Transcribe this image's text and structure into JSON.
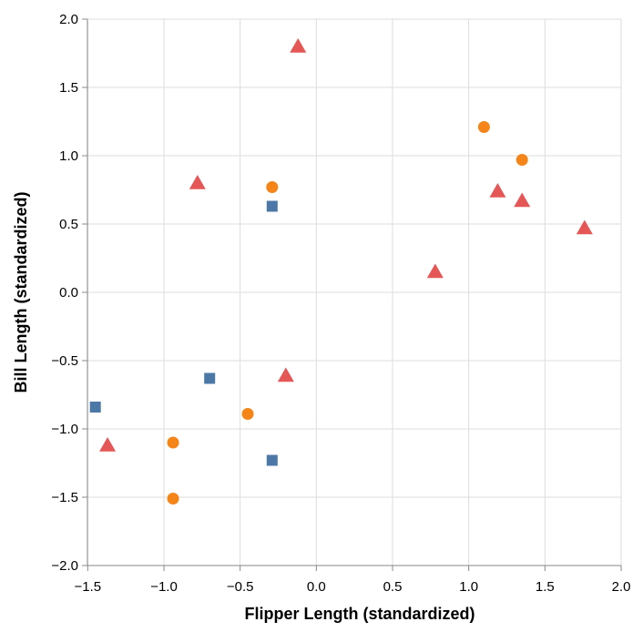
{
  "chart_data": {
    "type": "scatter",
    "xlabel": "Flipper Length (standardized)",
    "ylabel": "Bill Length (standardized)",
    "xlim": [
      -1.5,
      2.0
    ],
    "ylim": [
      -2.0,
      2.0
    ],
    "x_ticks": [
      "−1.5",
      "−1.0",
      "−0.5",
      "0.0",
      "0.5",
      "1.0",
      "1.5",
      "2.0"
    ],
    "y_ticks": [
      "2.0",
      "1.5",
      "1.0",
      "0.5",
      "0.0",
      "−0.5",
      "−1.0",
      "−1.5",
      "−2.0"
    ],
    "grid": true,
    "series": [
      {
        "marker": "triangle",
        "color": "#e45756",
        "points": [
          {
            "x": -0.12,
            "y": 1.8
          },
          {
            "x": -0.78,
            "y": 0.8
          },
          {
            "x": 1.19,
            "y": 0.74
          },
          {
            "x": 1.35,
            "y": 0.67
          },
          {
            "x": 1.76,
            "y": 0.47
          },
          {
            "x": 0.78,
            "y": 0.15
          },
          {
            "x": -0.2,
            "y": -0.61
          },
          {
            "x": -1.37,
            "y": -1.12
          }
        ]
      },
      {
        "marker": "circle",
        "color": "#f58518",
        "points": [
          {
            "x": 1.1,
            "y": 1.21
          },
          {
            "x": 1.35,
            "y": 0.97
          },
          {
            "x": -0.29,
            "y": 0.77
          },
          {
            "x": -0.45,
            "y": -0.89
          },
          {
            "x": -0.94,
            "y": -1.1
          },
          {
            "x": -0.94,
            "y": -1.51
          }
        ]
      },
      {
        "marker": "square",
        "color": "#4c78a8",
        "points": [
          {
            "x": -0.29,
            "y": 0.63
          },
          {
            "x": -0.7,
            "y": -0.63
          },
          {
            "x": -1.45,
            "y": -0.84
          },
          {
            "x": -0.29,
            "y": -1.23
          }
        ]
      }
    ]
  }
}
